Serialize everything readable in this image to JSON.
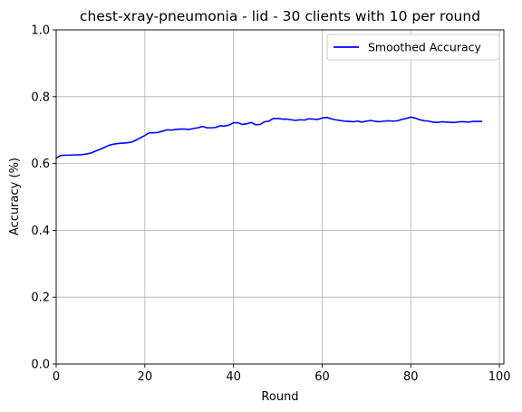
{
  "chart_data": {
    "type": "line",
    "title": "chest-xray-pneumonia - lid - 30 clients with 10 per round",
    "xlabel": "Round",
    "ylabel": "Accuracy (%)",
    "xlim": [
      0,
      101
    ],
    "ylim": [
      0.0,
      1.0
    ],
    "x_ticks": [
      0,
      20,
      40,
      60,
      80,
      100
    ],
    "y_ticks": [
      0.0,
      0.2,
      0.4,
      0.6,
      0.8,
      1.0
    ],
    "x_tick_labels": [
      "0",
      "20",
      "40",
      "60",
      "80",
      "100"
    ],
    "y_tick_labels": [
      "0.0",
      "0.2",
      "0.4",
      "0.6",
      "0.8",
      "1.0"
    ],
    "grid": true,
    "legend_position": "top-right",
    "series": [
      {
        "name": "Smoothed Accuracy",
        "color": "#0000ff",
        "x": [
          0,
          1,
          2,
          3,
          4,
          5,
          6,
          7,
          8,
          9,
          10,
          11,
          12,
          13,
          14,
          15,
          16,
          17,
          18,
          19,
          20,
          21,
          22,
          23,
          24,
          25,
          26,
          27,
          28,
          29,
          30,
          31,
          32,
          33,
          34,
          35,
          36,
          37,
          38,
          39,
          40,
          41,
          42,
          43,
          44,
          45,
          46,
          47,
          48,
          49,
          50,
          51,
          52,
          53,
          54,
          55,
          56,
          57,
          58,
          59,
          60,
          61,
          62,
          63,
          64,
          65,
          66,
          67,
          68,
          69,
          70,
          71,
          72,
          73,
          74,
          75,
          76,
          77,
          78,
          79,
          80,
          81,
          82,
          83,
          84,
          85,
          86,
          87,
          88,
          89,
          90,
          91,
          92,
          93,
          94,
          95,
          96
        ],
        "y": [
          0.616,
          0.624,
          0.625,
          0.625,
          0.626,
          0.626,
          0.627,
          0.629,
          0.632,
          0.638,
          0.643,
          0.649,
          0.655,
          0.658,
          0.66,
          0.661,
          0.662,
          0.664,
          0.67,
          0.677,
          0.684,
          0.692,
          0.692,
          0.693,
          0.697,
          0.701,
          0.7,
          0.702,
          0.703,
          0.703,
          0.702,
          0.705,
          0.707,
          0.711,
          0.707,
          0.707,
          0.708,
          0.713,
          0.712,
          0.715,
          0.722,
          0.722,
          0.717,
          0.719,
          0.723,
          0.716,
          0.717,
          0.725,
          0.727,
          0.735,
          0.735,
          0.733,
          0.733,
          0.731,
          0.729,
          0.731,
          0.73,
          0.734,
          0.733,
          0.732,
          0.736,
          0.738,
          0.734,
          0.731,
          0.729,
          0.727,
          0.726,
          0.725,
          0.727,
          0.724,
          0.727,
          0.729,
          0.726,
          0.725,
          0.727,
          0.728,
          0.727,
          0.728,
          0.732,
          0.735,
          0.739,
          0.736,
          0.731,
          0.728,
          0.727,
          0.724,
          0.723,
          0.725,
          0.724,
          0.723,
          0.723,
          0.725,
          0.725,
          0.724,
          0.726,
          0.726,
          0.726
        ]
      }
    ]
  }
}
